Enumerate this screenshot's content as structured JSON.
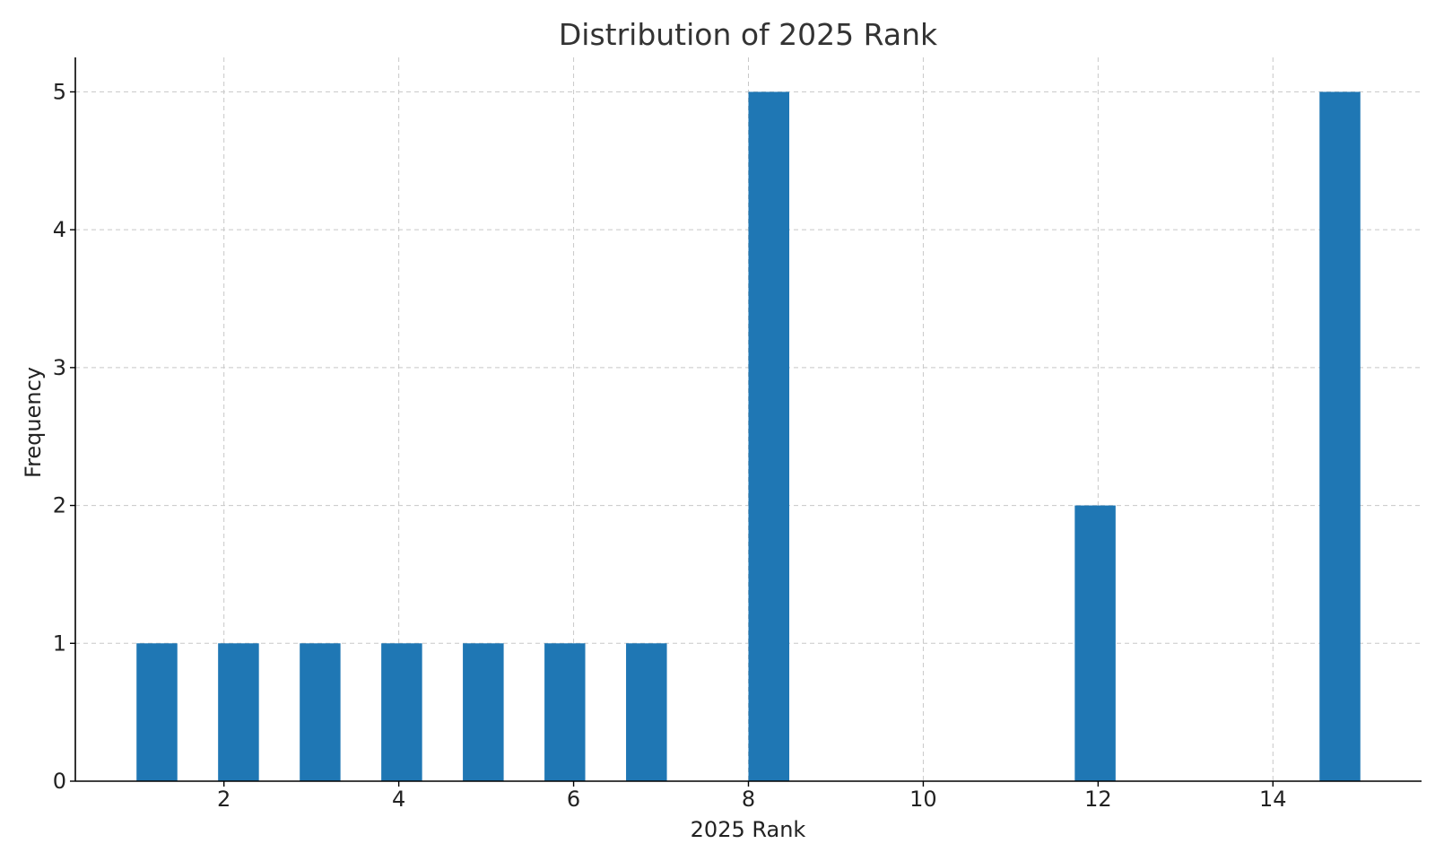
{
  "chart_data": {
    "type": "bar",
    "title": "Distribution of 2025 Rank",
    "xlabel": "2025 Rank",
    "ylabel": "Frequency",
    "bins": [
      {
        "start": 1.0,
        "end": 1.467,
        "count": 1
      },
      {
        "start": 1.933,
        "end": 2.4,
        "count": 1
      },
      {
        "start": 2.867,
        "end": 3.333,
        "count": 1
      },
      {
        "start": 3.8,
        "end": 4.267,
        "count": 1
      },
      {
        "start": 4.733,
        "end": 5.2,
        "count": 1
      },
      {
        "start": 5.667,
        "end": 6.133,
        "count": 1
      },
      {
        "start": 6.6,
        "end": 7.067,
        "count": 1
      },
      {
        "start": 8.0,
        "end": 8.467,
        "count": 5
      },
      {
        "start": 11.733,
        "end": 12.2,
        "count": 2
      },
      {
        "start": 14.533,
        "end": 15.0,
        "count": 5
      }
    ],
    "xlim": [
      0.3,
      15.7
    ],
    "ylim": [
      0,
      5.25
    ],
    "xticks": [
      2,
      4,
      6,
      8,
      10,
      12,
      14
    ],
    "yticks": [
      0,
      1,
      2,
      3,
      4,
      5
    ],
    "grid": true,
    "bar_color": "#1f77b4"
  }
}
